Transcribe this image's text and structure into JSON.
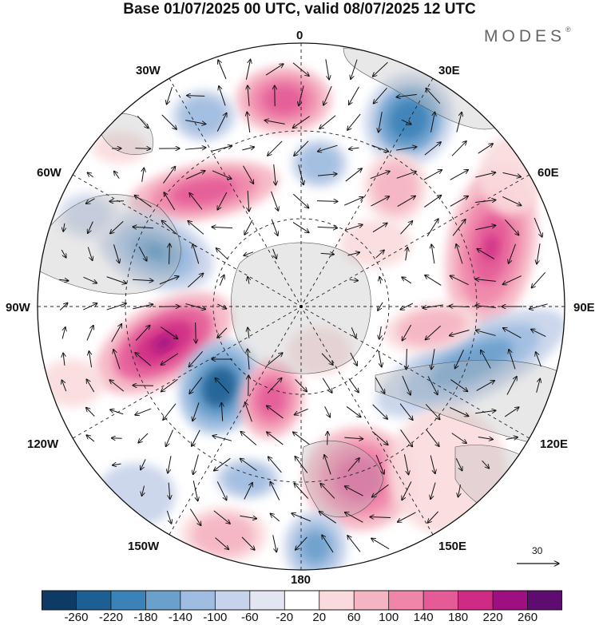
{
  "title": "Base 01/07/2025 00 UTC, valid 08/07/2025 12 UTC",
  "brand": {
    "name": "MODES",
    "mark": "®"
  },
  "map": {
    "projection": "south-polar-stereographic",
    "grid": true,
    "longitude_labels": {
      "top": "0",
      "bottom": "180",
      "left": "90W",
      "right": "90E",
      "upper_left_1": "30W",
      "upper_left_2": "60W",
      "upper_right_1": "30E",
      "upper_right_2": "60E",
      "lower_left_1": "120W",
      "lower_left_2": "150W",
      "lower_right_1": "120E",
      "lower_right_2": "150E"
    },
    "land_color": "#e6e6e6",
    "vector_reference": {
      "value": "30",
      "icon": "arrow-right-icon"
    }
  },
  "colorbar": {
    "colors": [
      "#0d3b66",
      "#1d5f93",
      "#3b82b8",
      "#6ca0cc",
      "#9fbde0",
      "#c6d3ea",
      "#e3e6f2",
      "#ffffff",
      "#fadadd",
      "#f5b4c2",
      "#ef86aa",
      "#e45b97",
      "#cf2b85",
      "#9e0f82",
      "#5e0c6f"
    ],
    "ticks": [
      "-260",
      "-220",
      "-180",
      "-140",
      "-100",
      "-60",
      "-20",
      "20",
      "60",
      "100",
      "140",
      "180",
      "220",
      "260"
    ]
  }
}
